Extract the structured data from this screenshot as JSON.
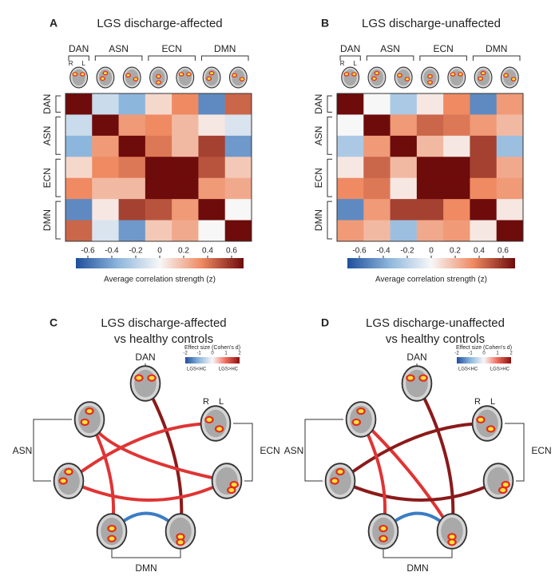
{
  "chart_data": [
    {
      "type": "heatmap",
      "panel": "A",
      "title": "LGS discharge-affected",
      "groups": [
        {
          "label": "DAN",
          "size": 1
        },
        {
          "label": "ASN",
          "size": 2
        },
        {
          "label": "ECN",
          "size": 2
        },
        {
          "label": "DMN",
          "size": 2
        }
      ],
      "sublabels": [
        "R",
        "L"
      ],
      "matrix": [
        [
          0.7,
          -0.15,
          -0.35,
          0.1,
          0.35,
          -0.5,
          0.45
        ],
        [
          -0.15,
          0.7,
          0.3,
          0.35,
          0.2,
          0.05,
          -0.1
        ],
        [
          -0.35,
          0.3,
          0.7,
          0.4,
          0.2,
          0.55,
          -0.45
        ],
        [
          0.1,
          0.35,
          0.4,
          0.7,
          0.7,
          0.5,
          0.15
        ],
        [
          0.35,
          0.2,
          0.2,
          0.7,
          0.7,
          0.3,
          0.25
        ],
        [
          -0.5,
          0.05,
          0.55,
          0.5,
          0.3,
          0.7,
          0.0
        ],
        [
          0.45,
          -0.1,
          -0.45,
          0.15,
          0.25,
          0.0,
          0.7
        ]
      ],
      "zlim": [
        -0.7,
        0.7
      ],
      "zticks": [
        -0.6,
        -0.4,
        -0.2,
        0,
        0.2,
        0.4,
        0.6
      ],
      "colors": [
        "#1f4f9c",
        "#8db6dc",
        "#f7f7f7",
        "#ef8a62",
        "#6e0b0b"
      ],
      "colorbar_label": "Average correlation strength (z)"
    },
    {
      "type": "heatmap",
      "panel": "B",
      "title": "LGS discharge-unaffected",
      "groups": [
        {
          "label": "DAN",
          "size": 1
        },
        {
          "label": "ASN",
          "size": 2
        },
        {
          "label": "ECN",
          "size": 2
        },
        {
          "label": "DMN",
          "size": 2
        }
      ],
      "sublabels": [
        "R",
        "L"
      ],
      "matrix": [
        [
          0.7,
          0.0,
          -0.25,
          0.05,
          0.35,
          -0.5,
          0.3
        ],
        [
          0.0,
          0.7,
          0.3,
          0.45,
          0.4,
          0.3,
          0.2
        ],
        [
          -0.25,
          0.3,
          0.7,
          0.2,
          0.05,
          0.55,
          -0.3
        ],
        [
          0.05,
          0.45,
          0.2,
          0.7,
          0.7,
          0.55,
          0.25
        ],
        [
          0.35,
          0.4,
          0.05,
          0.7,
          0.7,
          0.35,
          0.3
        ],
        [
          -0.5,
          0.3,
          0.55,
          0.55,
          0.35,
          0.7,
          0.05
        ],
        [
          0.3,
          0.2,
          -0.3,
          0.25,
          0.3,
          0.05,
          0.7
        ]
      ],
      "zlim": [
        -0.7,
        0.7
      ],
      "zticks": [
        -0.6,
        -0.4,
        -0.2,
        0,
        0.2,
        0.4,
        0.6
      ],
      "colors": [
        "#1f4f9c",
        "#8db6dc",
        "#f7f7f7",
        "#ef8a62",
        "#6e0b0b"
      ],
      "colorbar_label": "Average correlation strength (z)"
    }
  ],
  "diagrams": [
    {
      "panel": "C",
      "title": [
        "LGS discharge-affected",
        "vs healthy controls"
      ],
      "nodes": [
        "DAN",
        "ASN",
        "ECN",
        "DMN"
      ],
      "hemispheres": [
        "R",
        "L"
      ],
      "legend": {
        "title": "Effect size (Cohen's d)",
        "ticks": [
          -2,
          -1,
          0,
          1,
          2
        ],
        "low": "LGS<HC",
        "high": "LGS>HC"
      }
    },
    {
      "panel": "D",
      "title": [
        "LGS discharge-unaffected",
        "vs healthy controls"
      ],
      "nodes": [
        "DAN",
        "ASN",
        "ECN",
        "DMN"
      ],
      "hemispheres": [
        "R",
        "L"
      ],
      "legend": {
        "title": "Effect size (Cohen's d)",
        "ticks": [
          -2,
          -1,
          0,
          1,
          2
        ],
        "low": "LGS<HC",
        "high": "LGS>HC"
      }
    }
  ]
}
